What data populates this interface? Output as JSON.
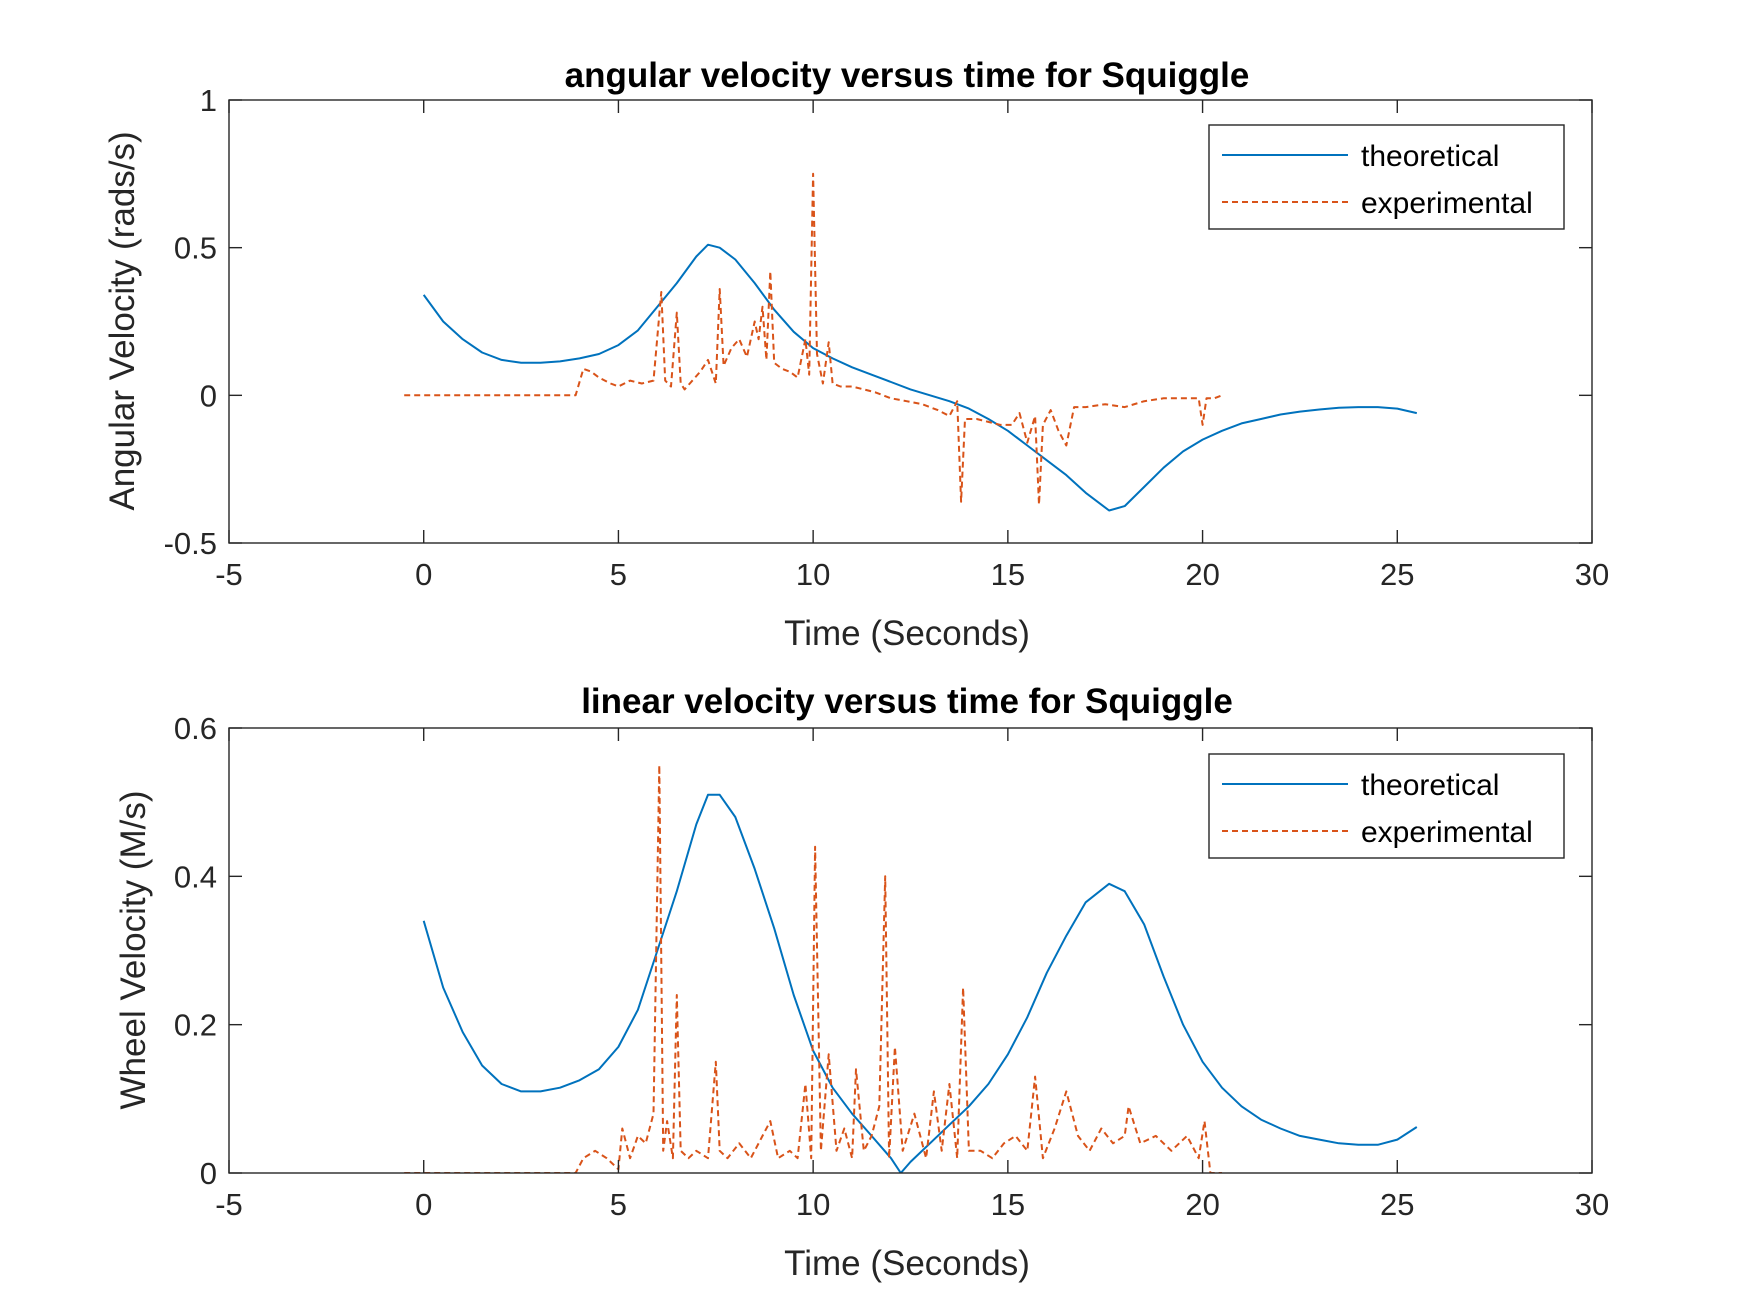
{
  "chart_data": [
    {
      "type": "line",
      "title": "angular velocity versus time for Squiggle",
      "xlabel": "Time (Seconds)",
      "ylabel": "Angular Velocity (rads/s)",
      "xlim": [
        -5,
        30
      ],
      "ylim": [
        -0.5,
        1
      ],
      "xticks": [
        "-5",
        "0",
        "5",
        "10",
        "15",
        "20",
        "25",
        "30"
      ],
      "yticks": [
        "-0.5",
        "0",
        "0.5",
        "1"
      ],
      "legend_position": "top-right",
      "grid": false,
      "series": [
        {
          "name": "theoretical",
          "style": "solid",
          "color": "#0072BD",
          "x": [
            0,
            0.5,
            1,
            1.5,
            2,
            2.5,
            3,
            3.5,
            4,
            4.5,
            5,
            5.5,
            6,
            6.5,
            7,
            7.3,
            7.6,
            8,
            8.5,
            9,
            9.5,
            10,
            10.5,
            11,
            11.5,
            12,
            12.5,
            13,
            13.5,
            14,
            14.5,
            15,
            15.5,
            16,
            16.5,
            17,
            17.6,
            18,
            18.5,
            19,
            19.5,
            20,
            20.5,
            21,
            21.5,
            22,
            22.5,
            23,
            23.5,
            24,
            24.5,
            25,
            25.5
          ],
          "y": [
            0.34,
            0.25,
            0.19,
            0.145,
            0.12,
            0.11,
            0.11,
            0.115,
            0.125,
            0.14,
            0.17,
            0.22,
            0.3,
            0.38,
            0.47,
            0.51,
            0.5,
            0.46,
            0.38,
            0.29,
            0.215,
            0.16,
            0.125,
            0.095,
            0.07,
            0.045,
            0.02,
            0.0,
            -0.02,
            -0.045,
            -0.08,
            -0.12,
            -0.17,
            -0.22,
            -0.27,
            -0.33,
            -0.39,
            -0.375,
            -0.31,
            -0.245,
            -0.19,
            -0.15,
            -0.12,
            -0.095,
            -0.08,
            -0.065,
            -0.055,
            -0.048,
            -0.042,
            -0.04,
            -0.04,
            -0.045,
            -0.06
          ]
        },
        {
          "name": "experimental",
          "style": "dashed",
          "color": "#D95319",
          "x": [
            -0.5,
            1,
            2,
            3,
            3.9,
            4.1,
            4.3,
            4.5,
            4.8,
            5.0,
            5.3,
            5.6,
            5.9,
            6.1,
            6.2,
            6.35,
            6.5,
            6.6,
            6.7,
            6.9,
            7.1,
            7.3,
            7.5,
            7.6,
            7.7,
            7.9,
            8.1,
            8.3,
            8.5,
            8.6,
            8.7,
            8.8,
            8.9,
            9.0,
            9.2,
            9.4,
            9.6,
            9.8,
            9.9,
            10.0,
            10.1,
            10.25,
            10.4,
            10.5,
            10.7,
            11.0,
            11.3,
            11.6,
            12.0,
            12.4,
            12.8,
            13.2,
            13.5,
            13.7,
            13.8,
            13.9,
            14.2,
            14.5,
            14.8,
            15.1,
            15.3,
            15.5,
            15.7,
            15.8,
            15.9,
            16.1,
            16.3,
            16.5,
            16.7,
            17.0,
            17.5,
            18.0,
            18.5,
            19.0,
            19.5,
            19.9,
            20.0,
            20.1,
            20.3,
            20.5
          ],
          "y": [
            0,
            0,
            0,
            0,
            0,
            0.09,
            0.08,
            0.06,
            0.04,
            0.03,
            0.05,
            0.04,
            0.05,
            0.35,
            0.05,
            0.03,
            0.28,
            0.04,
            0.02,
            0.05,
            0.08,
            0.12,
            0.04,
            0.36,
            0.1,
            0.16,
            0.19,
            0.13,
            0.25,
            0.19,
            0.3,
            0.12,
            0.42,
            0.11,
            0.09,
            0.08,
            0.06,
            0.19,
            0.07,
            0.75,
            0.14,
            0.04,
            0.18,
            0.04,
            0.03,
            0.03,
            0.02,
            0.01,
            -0.01,
            -0.02,
            -0.03,
            -0.05,
            -0.07,
            -0.02,
            -0.36,
            -0.08,
            -0.08,
            -0.09,
            -0.1,
            -0.1,
            -0.06,
            -0.16,
            -0.07,
            -0.37,
            -0.1,
            -0.05,
            -0.12,
            -0.17,
            -0.04,
            -0.04,
            -0.03,
            -0.04,
            -0.02,
            -0.01,
            -0.01,
            -0.01,
            -0.1,
            -0.01,
            -0.01,
            0.0
          ]
        }
      ]
    },
    {
      "type": "line",
      "title": "linear velocity versus time for Squiggle",
      "xlabel": "Time (Seconds)",
      "ylabel": "Wheel Velocity (M/s)",
      "xlim": [
        -5,
        30
      ],
      "ylim": [
        0,
        0.6
      ],
      "xticks": [
        "-5",
        "0",
        "5",
        "10",
        "15",
        "20",
        "25",
        "30"
      ],
      "yticks": [
        "0",
        "0.2",
        "0.4",
        "0.6"
      ],
      "legend_position": "top-right",
      "grid": false,
      "series": [
        {
          "name": "theoretical",
          "style": "solid",
          "color": "#0072BD",
          "x": [
            0,
            0.5,
            1,
            1.5,
            2,
            2.5,
            3,
            3.5,
            4,
            4.5,
            5,
            5.5,
            6,
            6.5,
            7,
            7.3,
            7.6,
            8,
            8.5,
            9,
            9.5,
            10,
            10.5,
            11,
            11.5,
            12,
            12.25,
            12.5,
            13,
            13.5,
            14,
            14.5,
            15,
            15.5,
            16,
            16.5,
            17,
            17.6,
            18,
            18.5,
            19,
            19.5,
            20,
            20.5,
            21,
            21.5,
            22,
            22.5,
            23,
            23.5,
            24,
            24.5,
            25,
            25.5
          ],
          "y": [
            0.34,
            0.25,
            0.19,
            0.145,
            0.12,
            0.11,
            0.11,
            0.115,
            0.125,
            0.14,
            0.17,
            0.22,
            0.3,
            0.38,
            0.47,
            0.51,
            0.51,
            0.48,
            0.41,
            0.33,
            0.24,
            0.165,
            0.115,
            0.08,
            0.05,
            0.02,
            0.0,
            0.015,
            0.04,
            0.065,
            0.09,
            0.12,
            0.16,
            0.21,
            0.27,
            0.32,
            0.365,
            0.39,
            0.38,
            0.335,
            0.265,
            0.2,
            0.15,
            0.115,
            0.09,
            0.072,
            0.06,
            0.05,
            0.045,
            0.04,
            0.038,
            0.038,
            0.045,
            0.062
          ]
        },
        {
          "name": "experimental",
          "style": "dashed",
          "color": "#D95319",
          "x": [
            -0.5,
            1,
            2,
            3,
            3.9,
            4.1,
            4.4,
            4.7,
            5.0,
            5.1,
            5.3,
            5.5,
            5.7,
            5.9,
            6.05,
            6.15,
            6.25,
            6.4,
            6.5,
            6.6,
            6.8,
            7.0,
            7.3,
            7.5,
            7.6,
            7.8,
            8.1,
            8.4,
            8.7,
            8.9,
            9.1,
            9.4,
            9.6,
            9.8,
            9.95,
            10.05,
            10.2,
            10.4,
            10.6,
            10.8,
            11.0,
            11.1,
            11.3,
            11.5,
            11.7,
            11.85,
            11.95,
            12.1,
            12.3,
            12.6,
            12.9,
            13.1,
            13.3,
            13.5,
            13.7,
            13.85,
            14.0,
            14.3,
            14.6,
            14.9,
            15.2,
            15.5,
            15.7,
            15.9,
            16.2,
            16.5,
            16.8,
            17.1,
            17.4,
            17.7,
            18.0,
            18.1,
            18.4,
            18.8,
            19.2,
            19.6,
            19.9,
            20.05,
            20.2,
            20.5
          ],
          "y": [
            0,
            0,
            0,
            0,
            0,
            0.02,
            0.03,
            0.02,
            0.005,
            0.06,
            0.02,
            0.05,
            0.04,
            0.08,
            0.55,
            0.03,
            0.07,
            0.02,
            0.24,
            0.03,
            0.02,
            0.03,
            0.02,
            0.15,
            0.03,
            0.02,
            0.04,
            0.02,
            0.05,
            0.07,
            0.02,
            0.03,
            0.02,
            0.12,
            0.02,
            0.44,
            0.03,
            0.16,
            0.03,
            0.06,
            0.02,
            0.14,
            0.03,
            0.05,
            0.09,
            0.4,
            0.02,
            0.17,
            0.03,
            0.08,
            0.02,
            0.11,
            0.03,
            0.12,
            0.02,
            0.25,
            0.03,
            0.03,
            0.02,
            0.04,
            0.05,
            0.03,
            0.13,
            0.02,
            0.06,
            0.11,
            0.05,
            0.03,
            0.06,
            0.04,
            0.05,
            0.09,
            0.04,
            0.05,
            0.03,
            0.05,
            0.02,
            0.07,
            0.0,
            0.0
          ]
        }
      ]
    }
  ]
}
